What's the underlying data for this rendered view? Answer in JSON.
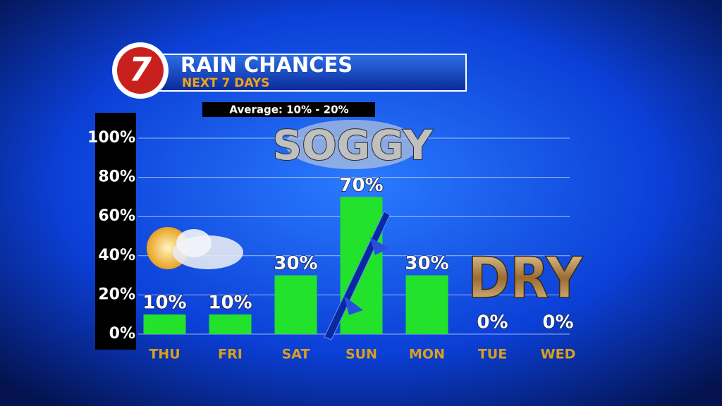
{
  "logo": "7",
  "chart_data": {
    "type": "bar",
    "title": "RAIN CHANCES",
    "subtitle": "NEXT 7 DAYS",
    "note": "Average: 10% - 20%",
    "annotations": [
      "SOGGY",
      "DRY"
    ],
    "categories": [
      "THU",
      "FRI",
      "SAT",
      "SUN",
      "MON",
      "TUE",
      "WED"
    ],
    "values": [
      10,
      10,
      30,
      70,
      30,
      0,
      0
    ],
    "value_labels": [
      "10%",
      "10%",
      "30%",
      "70%",
      "30%",
      "0%",
      "0%"
    ],
    "color": "#22e22c",
    "ylim": [
      0,
      100
    ],
    "yticks": [
      {
        "value": 0,
        "label": "0%"
      },
      {
        "value": 20,
        "label": "20%"
      },
      {
        "value": 40,
        "label": "40%"
      },
      {
        "value": 60,
        "label": "60%"
      },
      {
        "value": 80,
        "label": "80%"
      },
      {
        "value": 100,
        "label": "100%"
      }
    ],
    "grid": true
  }
}
